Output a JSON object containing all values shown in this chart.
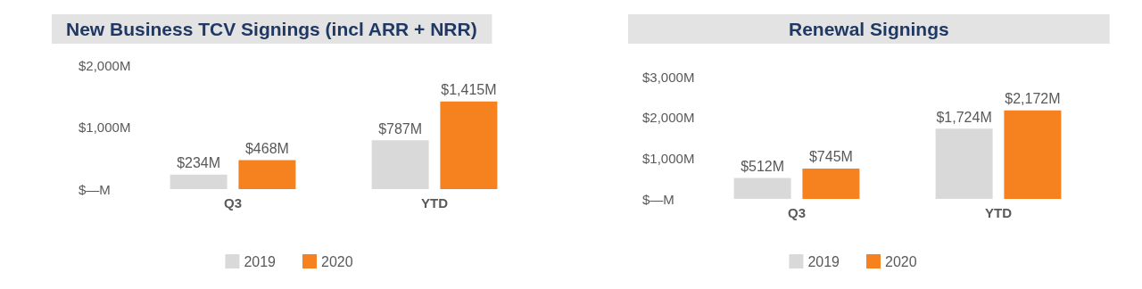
{
  "chart_data": [
    {
      "type": "bar",
      "title": "New Business TCV Signings (incl ARR + NRR)",
      "categories": [
        "Q3",
        "YTD"
      ],
      "series": [
        {
          "name": "2019",
          "color": "#d9d9d9",
          "values": [
            234,
            787
          ],
          "value_labels": [
            "$234M",
            "$787M"
          ]
        },
        {
          "name": "2020",
          "color": "#f5821f",
          "values": [
            468,
            1415
          ],
          "value_labels": [
            "$468M",
            "$1,415M"
          ]
        }
      ],
      "ylim": [
        0,
        2000
      ],
      "yticks": [
        {
          "value": 0,
          "label": "$—M"
        },
        {
          "value": 1000,
          "label": "$1,000M"
        },
        {
          "value": 2000,
          "label": "$2,000M"
        }
      ],
      "legend": "bottom"
    },
    {
      "type": "bar",
      "title": "Renewal Signings",
      "categories": [
        "Q3",
        "YTD"
      ],
      "series": [
        {
          "name": "2019",
          "color": "#d9d9d9",
          "values": [
            512,
            1724
          ],
          "value_labels": [
            "$512M",
            "$1,724M"
          ]
        },
        {
          "name": "2020",
          "color": "#f5821f",
          "values": [
            745,
            2172
          ],
          "value_labels": [
            "$745M",
            "$2,172M"
          ]
        }
      ],
      "ylim": [
        0,
        3000
      ],
      "yticks": [
        {
          "value": 0,
          "label": "$—M"
        },
        {
          "value": 1000,
          "label": "$1,000M"
        },
        {
          "value": 2000,
          "label": "$2,000M"
        },
        {
          "value": 3000,
          "label": "$3,000M"
        }
      ],
      "legend": "bottom"
    }
  ]
}
